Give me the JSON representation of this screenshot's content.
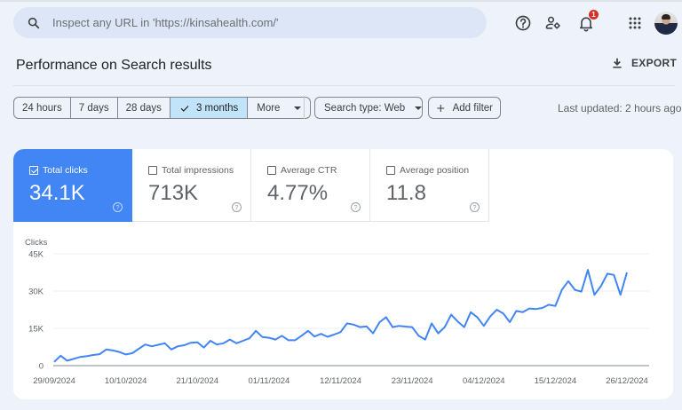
{
  "header": {
    "search_placeholder": "Inspect any URL in 'https://kinsahealth.com/'",
    "icons": [
      "help-icon",
      "manage-users-icon",
      "notifications-icon",
      "apps-grid-icon",
      "avatar"
    ],
    "notification_count": "1"
  },
  "page": {
    "title": "Performance on Search results",
    "export_label": "EXPORT"
  },
  "filters": {
    "date_ranges": [
      {
        "label": "24 hours",
        "active": false
      },
      {
        "label": "7 days",
        "active": false
      },
      {
        "label": "28 days",
        "active": false
      },
      {
        "label": "3 months",
        "active": true
      },
      {
        "label": "More",
        "active": false
      }
    ],
    "search_type": "Search type: Web",
    "add_filter": "Add filter",
    "last_updated": "Last updated: 2 hours ago"
  },
  "metrics": [
    {
      "label": "Total clicks",
      "value": "34.1K",
      "checked": true
    },
    {
      "label": "Total impressions",
      "value": "713K",
      "checked": false
    },
    {
      "label": "Average CTR",
      "value": "4.77%",
      "checked": false
    },
    {
      "label": "Average position",
      "value": "11.8",
      "checked": false
    }
  ],
  "colors": {
    "accent": "#4285f4",
    "line": "#4285f4",
    "active_segment": "#c2e4fb",
    "badge": "#d93025",
    "background": "#eef2fa"
  },
  "chart_data": {
    "type": "line",
    "title": "",
    "ylabel": "Clicks",
    "xlabel": "",
    "ylim": [
      0,
      45000
    ],
    "yticks": [
      "0",
      "15K",
      "30K",
      "45K"
    ],
    "ytick_values": [
      0,
      15000,
      30000,
      45000
    ],
    "xtick_labels": [
      "29/09/2024",
      "10/10/2024",
      "21/10/2024",
      "01/11/2024",
      "12/11/2024",
      "23/11/2024",
      "04/12/2024",
      "15/12/2024",
      "26/12/2024"
    ],
    "grid": true,
    "legend": "none",
    "series": [
      {
        "name": "Clicks",
        "start_date": "29/09/2024",
        "end_date": "26/12/2024",
        "values": [
          1500,
          4000,
          2000,
          2700,
          3500,
          3800,
          4300,
          4600,
          6500,
          6100,
          5500,
          4500,
          5000,
          6800,
          8500,
          7800,
          8400,
          9000,
          6500,
          7800,
          8200,
          9200,
          9400,
          7300,
          10000,
          8500,
          9000,
          10500,
          9000,
          10000,
          11000,
          14000,
          11500,
          11200,
          10500,
          12000,
          10200,
          10200,
          12000,
          14000,
          11700,
          12800,
          11600,
          12500,
          13500,
          17000,
          16500,
          15500,
          15800,
          13000,
          17500,
          19500,
          15500,
          16000,
          15700,
          15500,
          12000,
          10500,
          17000,
          13000,
          15500,
          20500,
          17800,
          15500,
          21500,
          19500,
          16000,
          19800,
          22500,
          21000,
          17500,
          22000,
          21500,
          23000,
          22800,
          23200,
          24500,
          24000,
          30500,
          34000,
          30500,
          29800,
          38500,
          28500,
          32000,
          37000,
          36500,
          28500,
          37500
        ]
      }
    ]
  }
}
